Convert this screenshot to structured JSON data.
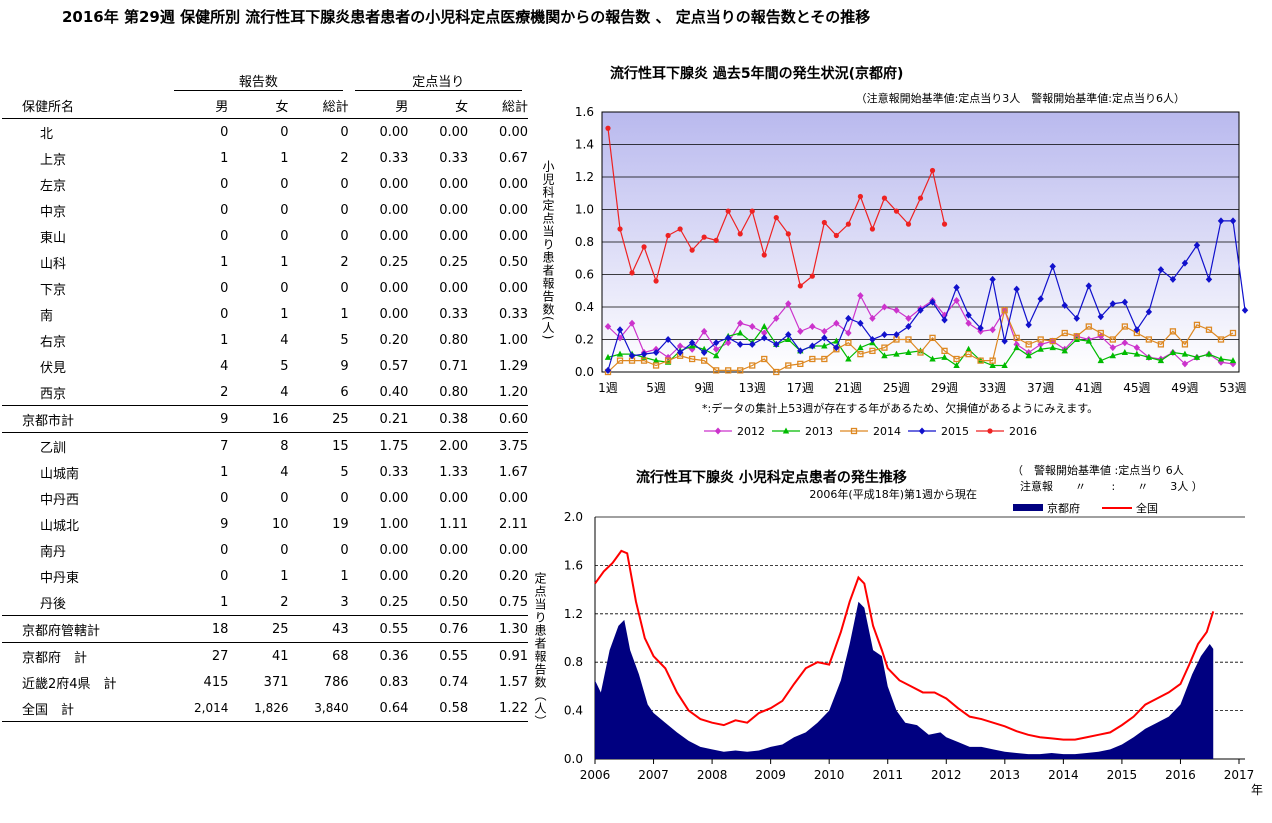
{
  "title": "2016年 第29週 保健所別 流行性耳下腺炎患者患者の小児科定点医療機関からの報告数 、 定点当りの報告数とその推移",
  "table": {
    "group_headers": [
      "報告数",
      "定点当り"
    ],
    "col_headers": [
      "保健所名",
      "男",
      "女",
      "総計",
      "男",
      "女",
      "総計"
    ],
    "rows": [
      {
        "name": "北",
        "values": [
          "0",
          "0",
          "0",
          "0.00",
          "0.00",
          "0.00"
        ]
      },
      {
        "name": "上京",
        "values": [
          "1",
          "1",
          "2",
          "0.33",
          "0.33",
          "0.67"
        ]
      },
      {
        "name": "左京",
        "values": [
          "0",
          "0",
          "0",
          "0.00",
          "0.00",
          "0.00"
        ]
      },
      {
        "name": "中京",
        "values": [
          "0",
          "0",
          "0",
          "0.00",
          "0.00",
          "0.00"
        ]
      },
      {
        "name": "東山",
        "values": [
          "0",
          "0",
          "0",
          "0.00",
          "0.00",
          "0.00"
        ]
      },
      {
        "name": "山科",
        "values": [
          "1",
          "1",
          "2",
          "0.25",
          "0.25",
          "0.50"
        ]
      },
      {
        "name": "下京",
        "values": [
          "0",
          "0",
          "0",
          "0.00",
          "0.00",
          "0.00"
        ]
      },
      {
        "name": "南",
        "values": [
          "0",
          "1",
          "1",
          "0.00",
          "0.33",
          "0.33"
        ]
      },
      {
        "name": "右京",
        "values": [
          "1",
          "4",
          "5",
          "0.20",
          "0.80",
          "1.00"
        ]
      },
      {
        "name": "伏見",
        "values": [
          "4",
          "5",
          "9",
          "0.57",
          "0.71",
          "1.29"
        ]
      },
      {
        "name": "西京",
        "values": [
          "2",
          "4",
          "6",
          "0.40",
          "0.80",
          "1.20"
        ]
      },
      {
        "name": "京都市計",
        "values": [
          "9",
          "16",
          "25",
          "0.21",
          "0.38",
          "0.60"
        ]
      },
      {
        "name": "乙訓",
        "values": [
          "7",
          "8",
          "15",
          "1.75",
          "2.00",
          "3.75"
        ]
      },
      {
        "name": "山城南",
        "values": [
          "1",
          "4",
          "5",
          "0.33",
          "1.33",
          "1.67"
        ]
      },
      {
        "name": "中丹西",
        "values": [
          "0",
          "0",
          "0",
          "0.00",
          "0.00",
          "0.00"
        ]
      },
      {
        "name": "山城北",
        "values": [
          "9",
          "10",
          "19",
          "1.00",
          "1.11",
          "2.11"
        ]
      },
      {
        "name": "南丹",
        "values": [
          "0",
          "0",
          "0",
          "0.00",
          "0.00",
          "0.00"
        ]
      },
      {
        "name": "中丹東",
        "values": [
          "0",
          "1",
          "1",
          "0.00",
          "0.20",
          "0.20"
        ]
      },
      {
        "name": "丹後",
        "values": [
          "1",
          "2",
          "3",
          "0.25",
          "0.50",
          "0.75"
        ]
      },
      {
        "name": "京都府管轄計",
        "values": [
          "18",
          "25",
          "43",
          "0.55",
          "0.76",
          "1.30"
        ]
      },
      {
        "name": "京都府　計",
        "values": [
          "27",
          "41",
          "68",
          "0.36",
          "0.55",
          "0.91"
        ]
      },
      {
        "name": "近畿2府4県　計",
        "values": [
          "415",
          "371",
          "786",
          "0.83",
          "0.74",
          "1.57"
        ]
      },
      {
        "name": "全国　計",
        "values": [
          "2,014",
          "1,826",
          "3,840",
          "0.64",
          "0.58",
          "1.22"
        ]
      }
    ]
  },
  "chart_data": [
    {
      "type": "line",
      "title": "流行性耳下腺炎 過去5年間の発生状況(京都府)",
      "subtitle": "（注意報開始基準値:定点当り3人　警報開始基準値:定点当り6人）",
      "ylabel": "小児科定点当り患者報告数(人)",
      "xlabel": "",
      "ylim": [
        0,
        1.6
      ],
      "yticks": [
        "0.0",
        "0.2",
        "0.4",
        "0.6",
        "0.8",
        "1.0",
        "1.2",
        "1.4",
        "1.6"
      ],
      "xticks": [
        "1週",
        "5週",
        "9週",
        "13週",
        "17週",
        "21週",
        "25週",
        "29週",
        "33週",
        "37週",
        "41週",
        "45週",
        "49週",
        "53週"
      ],
      "note": "*:データの集計上53週が存在する年があるため、欠損値があるようにみえます。",
      "legend_position": "bottom",
      "grid": true,
      "series": [
        {
          "name": "2012",
          "color": "#cc33cc",
          "marker": "diamond",
          "values": [
            0.28,
            0.21,
            0.3,
            0.12,
            0.14,
            0.09,
            0.16,
            0.14,
            0.25,
            0.14,
            0.18,
            0.3,
            0.28,
            0.24,
            0.33,
            0.42,
            0.25,
            0.28,
            0.25,
            0.3,
            0.24,
            0.47,
            0.33,
            0.4,
            0.38,
            0.33,
            0.39,
            0.44,
            0.35,
            0.44,
            0.3,
            0.25,
            0.26,
            0.38,
            0.17,
            0.12,
            0.17,
            0.19,
            0.14,
            0.22,
            0.2,
            0.22,
            0.15,
            0.18,
            0.15,
            0.09,
            0.08,
            0.12,
            0.05,
            0.09,
            0.11,
            0.06,
            0.05
          ]
        },
        {
          "name": "2013",
          "color": "#00bb00",
          "marker": "triangle",
          "values": [
            0.09,
            0.11,
            0.11,
            0.09,
            0.07,
            0.06,
            0.13,
            0.16,
            0.14,
            0.1,
            0.22,
            0.24,
            0.18,
            0.28,
            0.17,
            0.2,
            0.13,
            0.16,
            0.16,
            0.19,
            0.08,
            0.15,
            0.18,
            0.1,
            0.11,
            0.12,
            0.13,
            0.08,
            0.09,
            0.04,
            0.14,
            0.07,
            0.04,
            0.04,
            0.15,
            0.1,
            0.14,
            0.15,
            0.13,
            0.2,
            0.19,
            0.07,
            0.1,
            0.12,
            0.11,
            0.09,
            0.07,
            0.12,
            0.11,
            0.09,
            0.11,
            0.08,
            0.07
          ]
        },
        {
          "name": "2014",
          "color": "#dd8822",
          "marker": "square",
          "values": [
            0.0,
            0.07,
            0.07,
            0.07,
            0.04,
            0.07,
            0.1,
            0.08,
            0.07,
            0.01,
            0.01,
            0.01,
            0.04,
            0.08,
            0.0,
            0.04,
            0.05,
            0.08,
            0.08,
            0.14,
            0.18,
            0.11,
            0.13,
            0.15,
            0.2,
            0.2,
            0.12,
            0.21,
            0.13,
            0.08,
            0.11,
            0.07,
            0.07,
            0.38,
            0.21,
            0.17,
            0.2,
            0.19,
            0.24,
            0.22,
            0.28,
            0.24,
            0.2,
            0.28,
            0.24,
            0.2,
            0.17,
            0.25,
            0.17,
            0.29,
            0.26,
            0.2,
            0.24
          ]
        },
        {
          "name": "2015",
          "color": "#1111cc",
          "marker": "diamond",
          "values": [
            0.01,
            0.26,
            0.1,
            0.11,
            0.12,
            0.2,
            0.12,
            0.18,
            0.12,
            0.18,
            0.21,
            0.17,
            0.17,
            0.21,
            0.17,
            0.23,
            0.13,
            0.16,
            0.21,
            0.15,
            0.33,
            0.3,
            0.2,
            0.23,
            0.23,
            0.28,
            0.38,
            0.43,
            0.32,
            0.52,
            0.35,
            0.27,
            0.57,
            0.19,
            0.51,
            0.29,
            0.45,
            0.65,
            0.41,
            0.33,
            0.53,
            0.34,
            0.42,
            0.43,
            0.26,
            0.37,
            0.63,
            0.57,
            0.67,
            0.78,
            0.57,
            0.93,
            0.93,
            0.38
          ]
        },
        {
          "name": "2016",
          "color": "#ee2222",
          "marker": "circle",
          "values": [
            1.5,
            0.88,
            0.61,
            0.77,
            0.56,
            0.84,
            0.88,
            0.75,
            0.83,
            0.81,
            0.99,
            0.85,
            0.99,
            0.72,
            0.95,
            0.85,
            0.53,
            0.59,
            0.92,
            0.84,
            0.91,
            1.08,
            0.88,
            1.07,
            0.99,
            0.91,
            1.07,
            1.24,
            0.91
          ]
        }
      ]
    },
    {
      "type": "area",
      "title": "流行性耳下腺炎 小児科定点患者の発生推移",
      "subtitle": "2006年(平成18年)第1週から現在",
      "note_lines": [
        "（　警報開始基準値 :定点当り  6人",
        "注意報　　〃　　 :　　〃　　3人 ）"
      ],
      "ylabel": "定点当り患者報告数（人）",
      "xlabel": "年",
      "ylim": [
        0,
        2.0
      ],
      "yticks": [
        "0.0",
        "0.4",
        "0.8",
        "1.2",
        "1.6",
        "2.0"
      ],
      "xticks": [
        "2006",
        "2007",
        "2008",
        "2009",
        "2010",
        "2011",
        "2012",
        "2013",
        "2014",
        "2015",
        "2016",
        "2017"
      ],
      "legend_position": "top-right",
      "grid": true,
      "series": [
        {
          "name": "京都府",
          "color": "#000080",
          "kind": "area",
          "x": [
            2006.0,
            2006.1,
            2006.25,
            2006.4,
            2006.5,
            2006.6,
            2006.75,
            2006.9,
            2007.0,
            2007.2,
            2007.4,
            2007.6,
            2007.8,
            2008.0,
            2008.2,
            2008.4,
            2008.6,
            2008.8,
            2009.0,
            2009.2,
            2009.4,
            2009.6,
            2009.8,
            2010.0,
            2010.2,
            2010.35,
            2010.5,
            2010.6,
            2010.75,
            2010.9,
            2011.0,
            2011.15,
            2011.3,
            2011.5,
            2011.7,
            2011.9,
            2012.0,
            2012.2,
            2012.4,
            2012.6,
            2012.8,
            2013.0,
            2013.2,
            2013.4,
            2013.6,
            2013.8,
            2014.0,
            2014.2,
            2014.4,
            2014.6,
            2014.8,
            2015.0,
            2015.2,
            2015.4,
            2015.6,
            2015.8,
            2016.0,
            2016.2,
            2016.35,
            2016.5,
            2016.56
          ],
          "values": [
            0.65,
            0.55,
            0.9,
            1.1,
            1.15,
            0.9,
            0.7,
            0.45,
            0.38,
            0.3,
            0.22,
            0.15,
            0.1,
            0.08,
            0.06,
            0.07,
            0.06,
            0.07,
            0.1,
            0.12,
            0.18,
            0.22,
            0.3,
            0.4,
            0.65,
            0.95,
            1.3,
            1.25,
            0.9,
            0.85,
            0.6,
            0.4,
            0.3,
            0.28,
            0.2,
            0.22,
            0.18,
            0.14,
            0.1,
            0.1,
            0.08,
            0.06,
            0.05,
            0.04,
            0.04,
            0.05,
            0.04,
            0.04,
            0.05,
            0.06,
            0.08,
            0.12,
            0.18,
            0.25,
            0.3,
            0.35,
            0.45,
            0.7,
            0.85,
            0.95,
            0.91
          ]
        },
        {
          "name": "全国",
          "color": "#ff0000",
          "kind": "line",
          "x": [
            2006.0,
            2006.15,
            2006.3,
            2006.45,
            2006.55,
            2006.7,
            2006.85,
            2007.0,
            2007.2,
            2007.4,
            2007.6,
            2007.8,
            2008.0,
            2008.2,
            2008.4,
            2008.6,
            2008.8,
            2009.0,
            2009.2,
            2009.4,
            2009.6,
            2009.8,
            2010.0,
            2010.2,
            2010.35,
            2010.5,
            2010.6,
            2010.75,
            2010.9,
            2011.0,
            2011.2,
            2011.4,
            2011.6,
            2011.8,
            2012.0,
            2012.2,
            2012.4,
            2012.6,
            2012.8,
            2013.0,
            2013.2,
            2013.4,
            2013.6,
            2013.8,
            2014.0,
            2014.2,
            2014.4,
            2014.6,
            2014.8,
            2015.0,
            2015.2,
            2015.4,
            2015.6,
            2015.8,
            2016.0,
            2016.15,
            2016.3,
            2016.45,
            2016.56
          ],
          "values": [
            1.45,
            1.55,
            1.62,
            1.72,
            1.7,
            1.3,
            1.0,
            0.85,
            0.75,
            0.55,
            0.4,
            0.33,
            0.3,
            0.28,
            0.32,
            0.3,
            0.38,
            0.42,
            0.48,
            0.62,
            0.75,
            0.8,
            0.78,
            1.05,
            1.3,
            1.5,
            1.45,
            1.1,
            0.9,
            0.75,
            0.65,
            0.6,
            0.55,
            0.55,
            0.5,
            0.42,
            0.35,
            0.33,
            0.3,
            0.27,
            0.23,
            0.2,
            0.18,
            0.17,
            0.16,
            0.16,
            0.18,
            0.2,
            0.22,
            0.28,
            0.35,
            0.45,
            0.5,
            0.55,
            0.62,
            0.78,
            0.95,
            1.05,
            1.22
          ]
        }
      ]
    }
  ]
}
